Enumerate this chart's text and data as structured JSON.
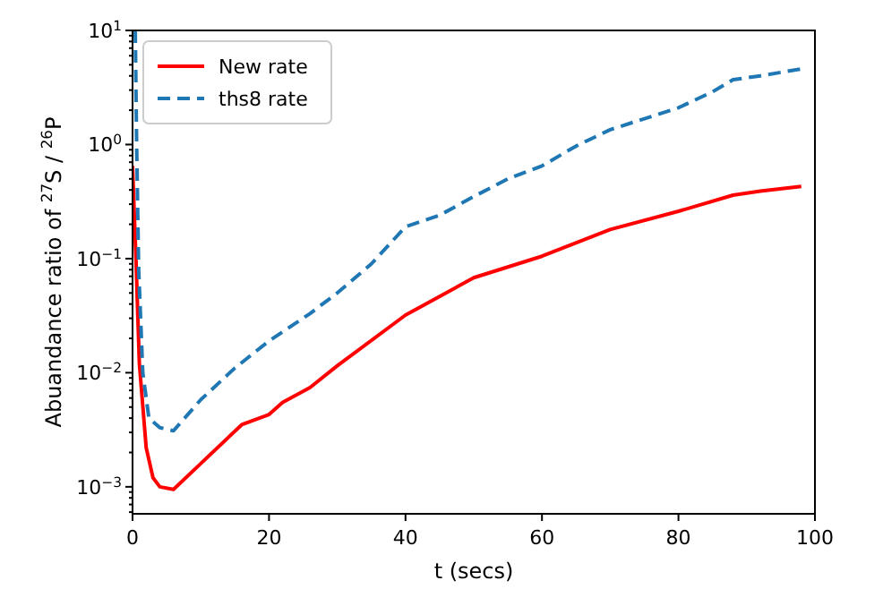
{
  "chart_data": {
    "type": "line",
    "xlabel": "t (secs)",
    "ylabel": "Abuandance ratio of $^{27}$S / $^{26}$P",
    "log": "y",
    "legend": "top left",
    "grid": false,
    "xlim": [
      0,
      100
    ],
    "xticks": [
      0,
      20,
      40,
      60,
      80,
      100
    ],
    "ylim": [
      0.00058,
      10
    ],
    "yticks": [
      {
        "value": 0.001,
        "label": "10$^{−3}$"
      },
      {
        "value": 0.01,
        "label": "10$^{−2}$"
      },
      {
        "value": 0.1,
        "label": "10$^{−1}$"
      },
      {
        "value": 1,
        "label": "10$^{0}$"
      },
      {
        "value": 10,
        "label": "10$^{1}$"
      },
      {
        "value": 0.0006,
        "label": null
      },
      {
        "value": 0.0007,
        "label": null
      },
      {
        "value": 0.0008,
        "label": null
      },
      {
        "value": 0.0009,
        "label": null
      },
      {
        "value": 0.002,
        "label": null
      },
      {
        "value": 0.003,
        "label": null
      },
      {
        "value": 0.004,
        "label": null
      },
      {
        "value": 0.005,
        "label": null
      },
      {
        "value": 0.006,
        "label": null
      },
      {
        "value": 0.007,
        "label": null
      },
      {
        "value": 0.008,
        "label": null
      },
      {
        "value": 0.009,
        "label": null
      },
      {
        "value": 0.02,
        "label": null
      },
      {
        "value": 0.03,
        "label": null
      },
      {
        "value": 0.04,
        "label": null
      },
      {
        "value": 0.05,
        "label": null
      },
      {
        "value": 0.06,
        "label": null
      },
      {
        "value": 0.07,
        "label": null
      },
      {
        "value": 0.08,
        "label": null
      },
      {
        "value": 0.09,
        "label": null
      },
      {
        "value": 0.2,
        "label": null
      },
      {
        "value": 0.3,
        "label": null
      },
      {
        "value": 0.4,
        "label": null
      },
      {
        "value": 0.5,
        "label": null
      },
      {
        "value": 0.6,
        "label": null
      },
      {
        "value": 0.7,
        "label": null
      },
      {
        "value": 0.8,
        "label": null
      },
      {
        "value": 0.9,
        "label": null
      },
      {
        "value": 2,
        "label": null
      },
      {
        "value": 3,
        "label": null
      },
      {
        "value": 4,
        "label": null
      },
      {
        "value": 5,
        "label": null
      },
      {
        "value": 6,
        "label": null
      },
      {
        "value": 7,
        "label": null
      },
      {
        "value": 8,
        "label": null
      },
      {
        "value": 9,
        "label": null
      }
    ],
    "series": [
      {
        "name": "New rate",
        "color": "#ff0000",
        "line_style": "solid",
        "x": [
          0,
          0.5,
          1,
          2,
          3,
          4,
          6,
          10,
          16,
          20,
          22,
          26,
          30,
          40,
          50,
          60,
          70,
          80,
          88,
          92,
          98
        ],
        "values": [
          0.65,
          0.1,
          0.012,
          0.0022,
          0.0012,
          0.001,
          0.00095,
          0.0016,
          0.0035,
          0.0043,
          0.0055,
          0.0074,
          0.0115,
          0.032,
          0.068,
          0.105,
          0.18,
          0.26,
          0.36,
          0.39,
          0.43
        ]
      },
      {
        "name": "ths8 rate",
        "color": "#1f77b4",
        "line_style": "dashed",
        "x": [
          0.4,
          0.6,
          0.9,
          1.5,
          2.4,
          4,
          6,
          10,
          15,
          20,
          26,
          30,
          35,
          40,
          45,
          50,
          55,
          60,
          65,
          70,
          80,
          85,
          88,
          92,
          98
        ],
        "values": [
          10,
          1,
          0.08,
          0.01,
          0.004,
          0.0033,
          0.0031,
          0.0058,
          0.011,
          0.019,
          0.033,
          0.05,
          0.09,
          0.19,
          0.24,
          0.35,
          0.5,
          0.65,
          0.97,
          1.35,
          2.1,
          2.9,
          3.7,
          4.0,
          4.6
        ]
      }
    ]
  }
}
